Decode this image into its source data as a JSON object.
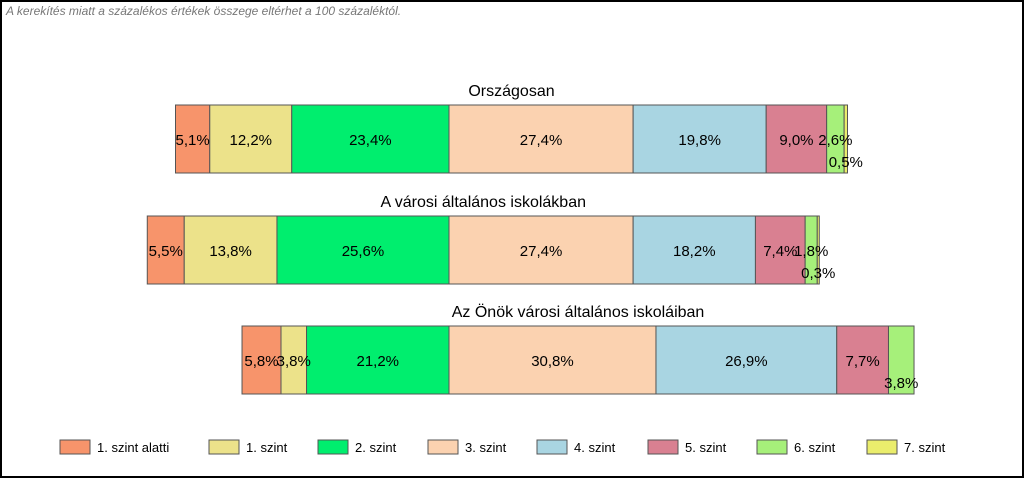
{
  "note": "A kerekítés miatt a  százalékos értékek összege eltérhet a 100 százaléktól.",
  "chart_data": {
    "type": "bar",
    "orientation": "horizontal-stacked",
    "legend_position": "bottom",
    "categories": [
      "Országosan",
      "A városi általános iskolákban",
      "Az Önök városi általános iskoláiban"
    ],
    "series": [
      {
        "name": "1. szint alatti",
        "color": "#f7946b",
        "values": [
          5.1,
          5.5,
          5.8
        ],
        "labels": [
          "5,1%",
          "5,5%",
          "5,8%"
        ]
      },
      {
        "name": "1. szint",
        "color": "#ece28a",
        "values": [
          12.2,
          13.8,
          3.8
        ],
        "labels": [
          "12,2%",
          "13,8%",
          "3,8%"
        ]
      },
      {
        "name": "2. szint",
        "color": "#00ee6e",
        "values": [
          23.4,
          25.6,
          21.2
        ],
        "labels": [
          "23,4%",
          "25,6%",
          "21,2%"
        ]
      },
      {
        "name": "3. szint",
        "color": "#fbd2b0",
        "values": [
          27.4,
          27.4,
          30.8
        ],
        "labels": [
          "27,4%",
          "27,4%",
          "30,8%"
        ]
      },
      {
        "name": "4. szint",
        "color": "#a9d5e2",
        "values": [
          19.8,
          18.2,
          26.9
        ],
        "labels": [
          "19,8%",
          "18,2%",
          "26,9%"
        ]
      },
      {
        "name": "5. szint",
        "color": "#d98091",
        "values": [
          9.0,
          7.4,
          7.7
        ],
        "labels": [
          "9,0%",
          "7,4%",
          "7,7%"
        ]
      },
      {
        "name": "6. szint",
        "color": "#a6f07a",
        "values": [
          2.6,
          1.8,
          3.8
        ],
        "labels": [
          "2,6%",
          "1,8%",
          "3,8%"
        ]
      },
      {
        "name": "7. szint",
        "color": "#eaed6c",
        "values": [
          0.5,
          0.3,
          0.0
        ],
        "labels": [
          "0,5%",
          "0,3%",
          ""
        ]
      }
    ]
  }
}
